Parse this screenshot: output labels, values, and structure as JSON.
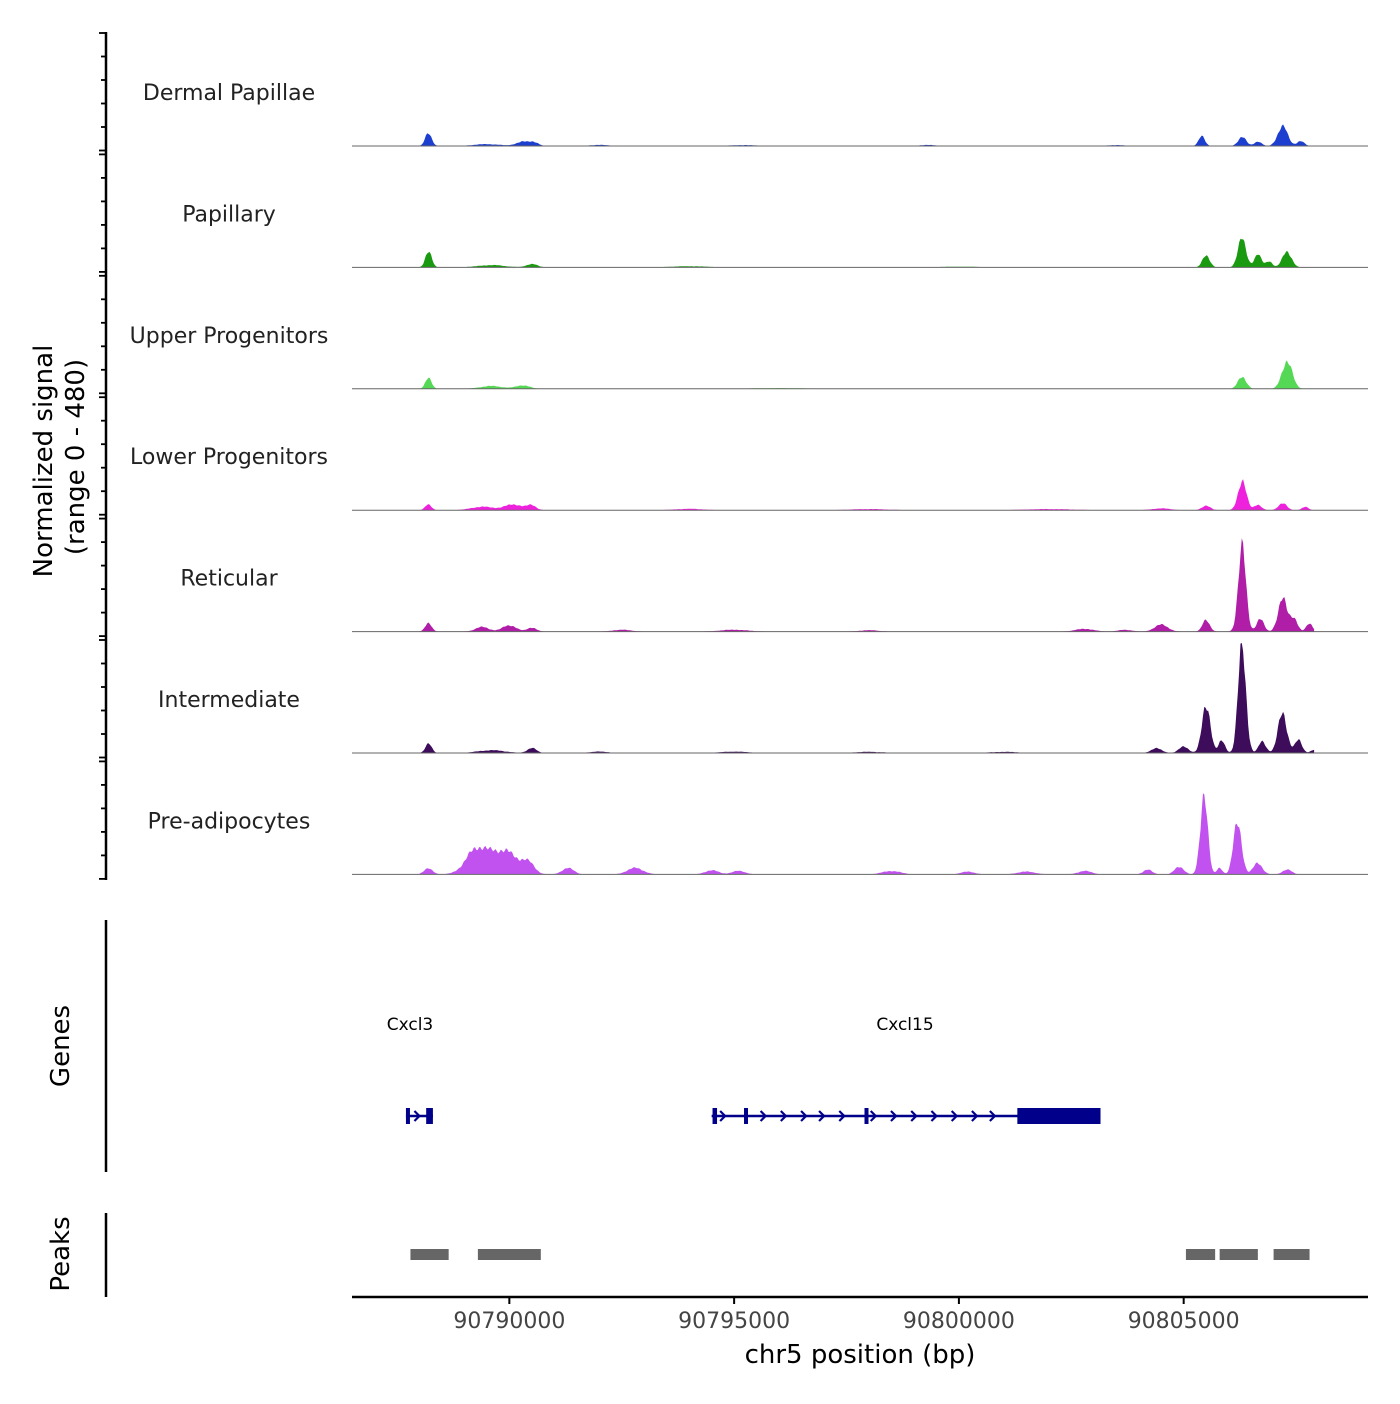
{
  "chart_data": {
    "type": "area",
    "title": "",
    "ylabel_line1": "Normalized signal",
    "ylabel_line2": "(range 0 - 480)",
    "xlabel": "chr5 position (bp)",
    "xlim": [
      90786500,
      90809100
    ],
    "ylim": [
      0,
      480
    ],
    "x_ticks": [
      90790000,
      90795000,
      90800000,
      90805000
    ],
    "x_tick_labels": [
      "90790000",
      "90795000",
      "90800000",
      "90805000"
    ],
    "genes_label": "Genes",
    "peaks_label": "Peaks",
    "tracks": [
      {
        "name": "Dermal Papillae",
        "color": "#1c3fd0",
        "peaks": [
          [
            90788200,
            60,
            70
          ],
          [
            90789500,
            8,
            300
          ],
          [
            90790300,
            18,
            150
          ],
          [
            90790550,
            15,
            100
          ],
          [
            90792000,
            5,
            200
          ],
          [
            90795200,
            4,
            300
          ],
          [
            90799300,
            5,
            150
          ],
          [
            90803500,
            4,
            200
          ],
          [
            90805400,
            42,
            70
          ],
          [
            90806300,
            38,
            90
          ],
          [
            90806650,
            20,
            80
          ],
          [
            90807200,
            85,
            110
          ],
          [
            90807600,
            22,
            80
          ]
        ]
      },
      {
        "name": "Papillary",
        "color": "#1a9a10",
        "peaks": [
          [
            90788200,
            72,
            70
          ],
          [
            90789600,
            10,
            300
          ],
          [
            90790500,
            15,
            120
          ],
          [
            90794000,
            5,
            400
          ],
          [
            90800000,
            3,
            500
          ],
          [
            90805500,
            55,
            80
          ],
          [
            90806300,
            125,
            90
          ],
          [
            90806650,
            55,
            80
          ],
          [
            90806900,
            28,
            70
          ],
          [
            90807300,
            70,
            100
          ]
        ]
      },
      {
        "name": "Upper Progenitors",
        "color": "#55d855",
        "peaks": [
          [
            90788200,
            45,
            70
          ],
          [
            90789600,
            12,
            250
          ],
          [
            90790300,
            15,
            150
          ],
          [
            90796000,
            3,
            600
          ],
          [
            90806300,
            55,
            90
          ],
          [
            90807300,
            125,
            110
          ]
        ]
      },
      {
        "name": "Lower Progenitors",
        "color": "#ee22dd",
        "peaks": [
          [
            90788200,
            25,
            70
          ],
          [
            90789400,
            15,
            250
          ],
          [
            90790100,
            25,
            200
          ],
          [
            90790500,
            20,
            100
          ],
          [
            90794000,
            6,
            300
          ],
          [
            90798000,
            5,
            400
          ],
          [
            90802000,
            5,
            500
          ],
          [
            90804500,
            8,
            200
          ],
          [
            90805500,
            18,
            100
          ],
          [
            90806300,
            130,
            90
          ],
          [
            90806650,
            25,
            80
          ],
          [
            90807200,
            32,
            90
          ],
          [
            90807700,
            15,
            70
          ]
        ]
      },
      {
        "name": "Reticular",
        "color": "#b01ea8",
        "peaks": [
          [
            90788200,
            40,
            70
          ],
          [
            90789400,
            20,
            150
          ],
          [
            90790000,
            28,
            150
          ],
          [
            90790500,
            18,
            100
          ],
          [
            90792500,
            8,
            200
          ],
          [
            90795000,
            8,
            300
          ],
          [
            90798000,
            6,
            200
          ],
          [
            90802800,
            12,
            200
          ],
          [
            90803700,
            8,
            150
          ],
          [
            90804500,
            30,
            150
          ],
          [
            90805500,
            50,
            80
          ],
          [
            90806300,
            360,
            85
          ],
          [
            90806700,
            55,
            80
          ],
          [
            90807200,
            140,
            100
          ],
          [
            90807450,
            60,
            80
          ],
          [
            90807800,
            35,
            70
          ]
        ]
      },
      {
        "name": "Intermediate",
        "color": "#3d0c5a",
        "peaks": [
          [
            90788200,
            42,
            70
          ],
          [
            90789600,
            12,
            300
          ],
          [
            90790500,
            22,
            100
          ],
          [
            90792000,
            6,
            200
          ],
          [
            90795000,
            6,
            300
          ],
          [
            90798000,
            5,
            300
          ],
          [
            90801000,
            5,
            300
          ],
          [
            90804400,
            20,
            120
          ],
          [
            90805000,
            30,
            100
          ],
          [
            90805500,
            220,
            90
          ],
          [
            90805850,
            55,
            70
          ],
          [
            90806300,
            480,
            85
          ],
          [
            90806750,
            50,
            80
          ],
          [
            90807200,
            170,
            100
          ],
          [
            90807550,
            55,
            80
          ],
          [
            90807900,
            15,
            70
          ]
        ]
      },
      {
        "name": "Pre-adipocytes",
        "color": "#c152ef",
        "peaks": [
          [
            90788200,
            25,
            100
          ],
          [
            90789300,
            115,
            250
          ],
          [
            90789900,
            100,
            250
          ],
          [
            90790400,
            50,
            150
          ],
          [
            90791300,
            28,
            130
          ],
          [
            90792800,
            28,
            180
          ],
          [
            90794500,
            18,
            150
          ],
          [
            90795100,
            15,
            150
          ],
          [
            90798500,
            15,
            200
          ],
          [
            90800200,
            12,
            150
          ],
          [
            90801500,
            12,
            200
          ],
          [
            90802800,
            15,
            150
          ],
          [
            90804200,
            20,
            100
          ],
          [
            90804900,
            35,
            100
          ],
          [
            90805450,
            360,
            80
          ],
          [
            90805800,
            30,
            60
          ],
          [
            90806200,
            230,
            90
          ],
          [
            90806650,
            50,
            100
          ],
          [
            90807300,
            22,
            100
          ]
        ]
      }
    ],
    "genes": [
      {
        "name": "Cxcl3",
        "start": 90787700,
        "end": 90788300,
        "strand": "+",
        "exons": [
          [
            90787700,
            90787760
          ],
          [
            90788150,
            90788300
          ]
        ],
        "arrows": [
          90788000
        ]
      },
      {
        "name": "Cxcl15",
        "start": 90794500,
        "end": 90803150,
        "strand": "+",
        "exons": [
          [
            90794520,
            90794620
          ],
          [
            90795220,
            90795300
          ],
          [
            90797900,
            90797960
          ],
          [
            90801300,
            90803150
          ]
        ],
        "arrows": [
          90794800,
          90795700,
          90796150,
          90796600,
          90797000,
          90797450,
          90798150,
          90798600,
          90799050,
          90799500,
          90799950,
          90800400,
          90800800
        ]
      }
    ],
    "peaks_regions": [
      [
        90787800,
        90788650
      ],
      [
        90789300,
        90790700
      ],
      [
        90805050,
        90805700
      ],
      [
        90805800,
        90806650
      ],
      [
        90807000,
        90807800
      ]
    ]
  }
}
